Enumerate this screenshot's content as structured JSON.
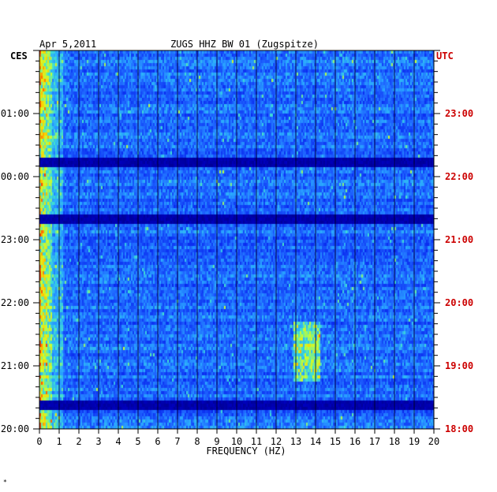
{
  "header": {
    "date": "Apr 5,2011",
    "station": "ZUGS HHZ BW 01 (Zugspitze)"
  },
  "footer_mark": "*",
  "chart_data": {
    "type": "heatmap",
    "title": "ZUGS HHZ BW 01 (Zugspitze)",
    "xlabel": "FREQUENCY (HZ)",
    "xlim": [
      0,
      20
    ],
    "x_ticks": [
      0,
      1,
      2,
      3,
      4,
      5,
      6,
      7,
      8,
      9,
      10,
      11,
      12,
      13,
      14,
      15,
      16,
      17,
      18,
      19,
      20
    ],
    "left_axis": {
      "label": "CES",
      "ticks": [
        "01:00",
        "00:00",
        "23:00",
        "22:00",
        "21:00",
        "20:00"
      ],
      "color": "#000000"
    },
    "right_axis": {
      "label": "UTC",
      "ticks": [
        "23:00",
        "22:00",
        "21:00",
        "20:00",
        "19:00",
        "18:00"
      ],
      "color": "#cc0000"
    },
    "time_range_utc": [
      "18:00",
      "24:00"
    ],
    "hours_from_bottom": [
      1,
      2,
      3,
      4,
      5
    ],
    "colormap": [
      "#00007a",
      "#0000c8",
      "#0a2cf0",
      "#1e64ff",
      "#2aa8ff",
      "#40e0d0",
      "#c8ff30",
      "#ffd000",
      "#ff4000"
    ],
    "low_frequency_band": {
      "x_range": [
        0,
        0.6
      ],
      "intensity": "high"
    },
    "bright_band_13_14hz_utc": [
      "18:45",
      "19:45"
    ],
    "data_gaps_utc": [
      "18:25",
      "21:20",
      "22:15"
    ]
  }
}
